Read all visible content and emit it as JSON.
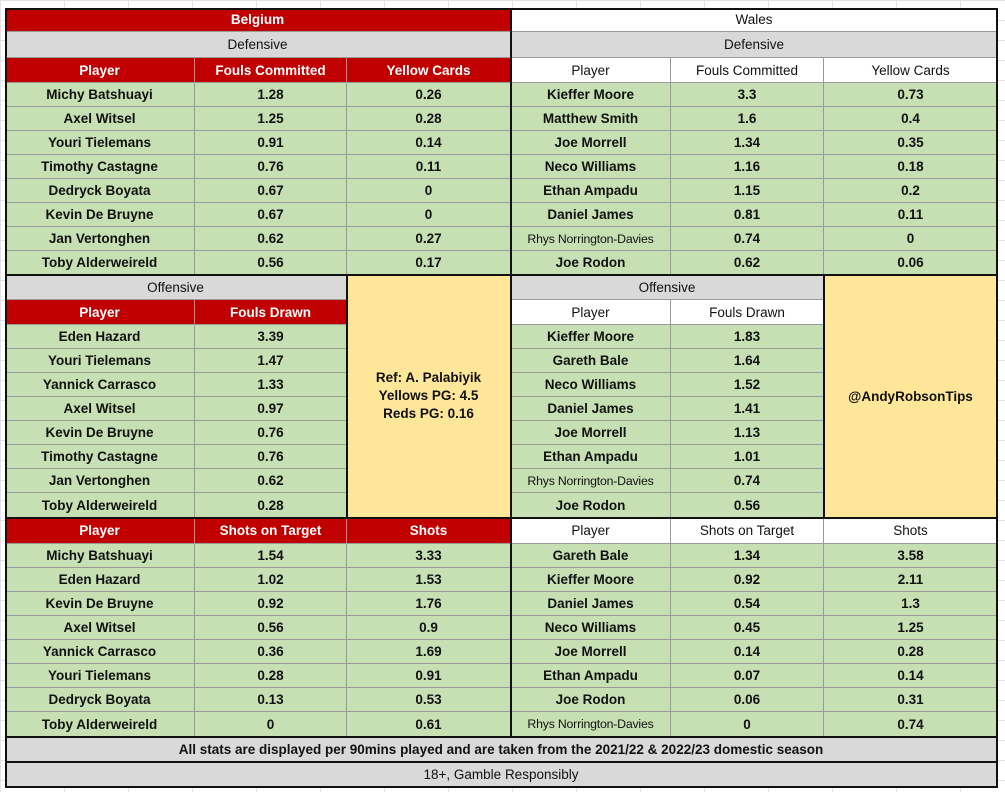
{
  "belgium": {
    "team": "Belgium",
    "defensive_title": "Defensive",
    "defensive_headers": [
      "Player",
      "Fouls Committed",
      "Yellow Cards"
    ],
    "defensive_rows": [
      [
        "Michy Batshuayi",
        "1.28",
        "0.26"
      ],
      [
        "Axel Witsel",
        "1.25",
        "0.28"
      ],
      [
        "Youri Tielemans",
        "0.91",
        "0.14"
      ],
      [
        "Timothy Castagne",
        "0.76",
        "0.11"
      ],
      [
        "Dedryck Boyata",
        "0.67",
        "0"
      ],
      [
        "Kevin De Bruyne",
        "0.67",
        "0"
      ],
      [
        "Jan Vertonghen",
        "0.62",
        "0.27"
      ],
      [
        "Toby Alderweireld",
        "0.56",
        "0.17"
      ]
    ],
    "offensive_title": "Offensive",
    "offensive_headers": [
      "Player",
      "Fouls Drawn"
    ],
    "offensive_rows": [
      [
        "Eden Hazard",
        "3.39"
      ],
      [
        "Youri Tielemans",
        "1.47"
      ],
      [
        "Yannick Carrasco",
        "1.33"
      ],
      [
        "Axel Witsel",
        "0.97"
      ],
      [
        "Kevin De Bruyne",
        "0.76"
      ],
      [
        "Timothy Castagne",
        "0.76"
      ],
      [
        "Jan Vertonghen",
        "0.62"
      ],
      [
        "Toby Alderweireld",
        "0.28"
      ]
    ],
    "shots_headers": [
      "Player",
      "Shots on Target",
      "Shots"
    ],
    "shots_rows": [
      [
        "Michy Batshuayi",
        "1.54",
        "3.33"
      ],
      [
        "Eden Hazard",
        "1.02",
        "1.53"
      ],
      [
        "Kevin De Bruyne",
        "0.92",
        "1.76"
      ],
      [
        "Axel Witsel",
        "0.56",
        "0.9"
      ],
      [
        "Yannick Carrasco",
        "0.36",
        "1.69"
      ],
      [
        "Youri Tielemans",
        "0.28",
        "0.91"
      ],
      [
        "Dedryck Boyata",
        "0.13",
        "0.53"
      ],
      [
        "Toby Alderweireld",
        "0",
        "0.61"
      ]
    ]
  },
  "wales": {
    "team": "Wales",
    "defensive_title": "Defensive",
    "defensive_headers": [
      "Player",
      "Fouls Committed",
      "Yellow Cards"
    ],
    "defensive_rows": [
      [
        "Kieffer Moore",
        "3.3",
        "0.73"
      ],
      [
        "Matthew Smith",
        "1.6",
        "0.4"
      ],
      [
        "Joe Morrell",
        "1.34",
        "0.35"
      ],
      [
        "Neco Williams",
        "1.16",
        "0.18"
      ],
      [
        "Ethan Ampadu",
        "1.15",
        "0.2"
      ],
      [
        "Daniel James",
        "0.81",
        "0.11"
      ],
      [
        "Rhys Norrington-Davies",
        "0.74",
        "0"
      ],
      [
        "Joe Rodon",
        "0.62",
        "0.06"
      ]
    ],
    "offensive_title": "Offensive",
    "offensive_headers": [
      "Player",
      "Fouls Drawn"
    ],
    "offensive_rows": [
      [
        "Kieffer Moore",
        "1.83"
      ],
      [
        "Gareth Bale",
        "1.64"
      ],
      [
        "Neco Williams",
        "1.52"
      ],
      [
        "Daniel James",
        "1.41"
      ],
      [
        "Joe Morrell",
        "1.13"
      ],
      [
        "Ethan Ampadu",
        "1.01"
      ],
      [
        "Rhys Norrington-Davies",
        "0.74"
      ],
      [
        "Joe Rodon",
        "0.56"
      ]
    ],
    "shots_headers": [
      "Player",
      "Shots on Target",
      "Shots"
    ],
    "shots_rows": [
      [
        "Gareth Bale",
        "1.34",
        "3.58"
      ],
      [
        "Kieffer Moore",
        "0.92",
        "2.11"
      ],
      [
        "Daniel James",
        "0.54",
        "1.3"
      ],
      [
        "Neco Williams",
        "0.45",
        "1.25"
      ],
      [
        "Joe Morrell",
        "0.14",
        "0.28"
      ],
      [
        "Ethan Ampadu",
        "0.07",
        "0.14"
      ],
      [
        "Joe Rodon",
        "0.06",
        "0.31"
      ],
      [
        "Rhys Norrington-Davies",
        "0",
        "0.74"
      ]
    ]
  },
  "referee": {
    "line1": "Ref: A. Palabiyik",
    "line2": "Yellows PG: 4.5",
    "line3": "Reds PG: 0.16"
  },
  "handle": "@AndyRobsonTips",
  "footer": {
    "note": "All stats are displayed per 90mins played and are taken from the 2021/22 & 2022/23 domestic season",
    "disclaimer": "18+, Gamble Responsibly"
  },
  "colors": {
    "belgium_header": "#c00000",
    "wales_header": "#ffffff",
    "data_fill": "#c6e0b4",
    "info_fill": "#ffe699",
    "section_fill": "#d9d9d9"
  }
}
